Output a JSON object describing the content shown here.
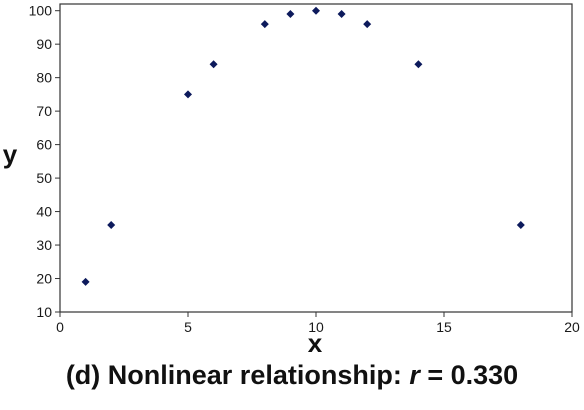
{
  "chart_data": {
    "type": "scatter",
    "xlabel": "x",
    "ylabel": "y",
    "xlim": [
      0,
      20
    ],
    "ylim": [
      10,
      102
    ],
    "xticks": [
      0,
      5,
      10,
      15,
      20
    ],
    "yticks": [
      10,
      20,
      30,
      40,
      50,
      60,
      70,
      80,
      90,
      100
    ],
    "marker_color": "#0d1a5c",
    "points": [
      {
        "x": 1,
        "y": 19
      },
      {
        "x": 2,
        "y": 36
      },
      {
        "x": 5,
        "y": 75
      },
      {
        "x": 6,
        "y": 84
      },
      {
        "x": 8,
        "y": 96
      },
      {
        "x": 9,
        "y": 99
      },
      {
        "x": 10,
        "y": 100
      },
      {
        "x": 11,
        "y": 99
      },
      {
        "x": 12,
        "y": 96
      },
      {
        "x": 14,
        "y": 84
      },
      {
        "x": 18,
        "y": 36
      }
    ]
  },
  "caption": {
    "prefix": "(d) Nonlinear relationship: ",
    "var": "r",
    "suffix": " = 0.330"
  }
}
